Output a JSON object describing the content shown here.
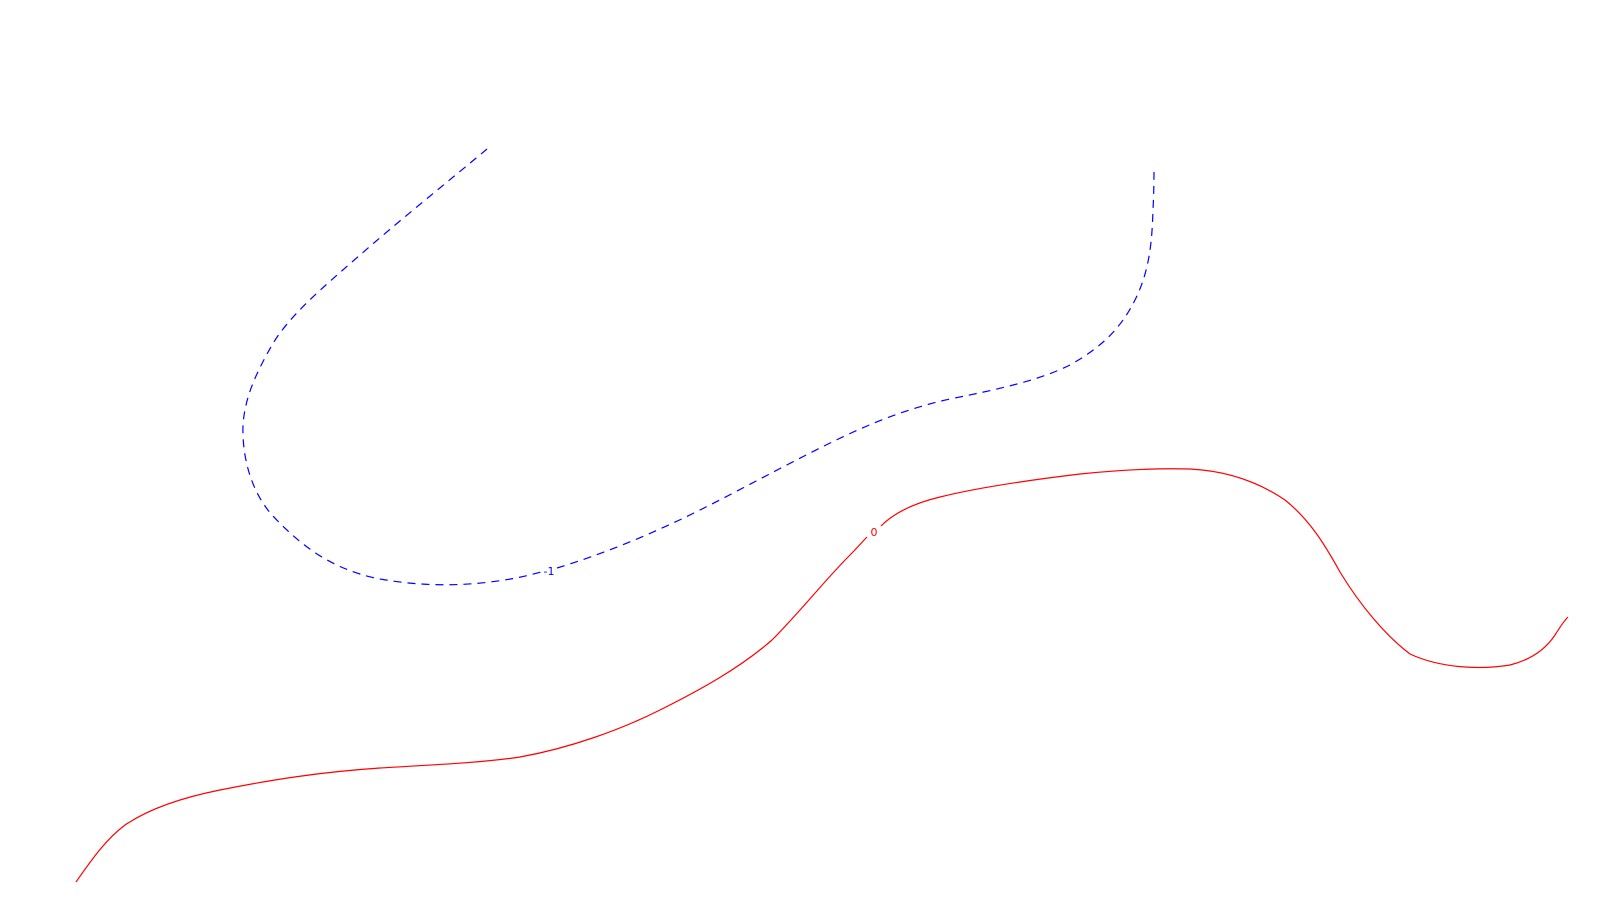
{
  "colors": {
    "background": "#ffffff",
    "negative_contour": "#0000ff",
    "zero_contour": "#ff0000"
  },
  "contours": [
    {
      "id": "contour-minus-1",
      "level": -1,
      "label": "-1",
      "line_style": "dashed",
      "color": "#0000ff"
    },
    {
      "id": "contour-zero",
      "level": 0,
      "label": "0",
      "line_style": "solid",
      "color": "#ff0000"
    }
  ]
}
